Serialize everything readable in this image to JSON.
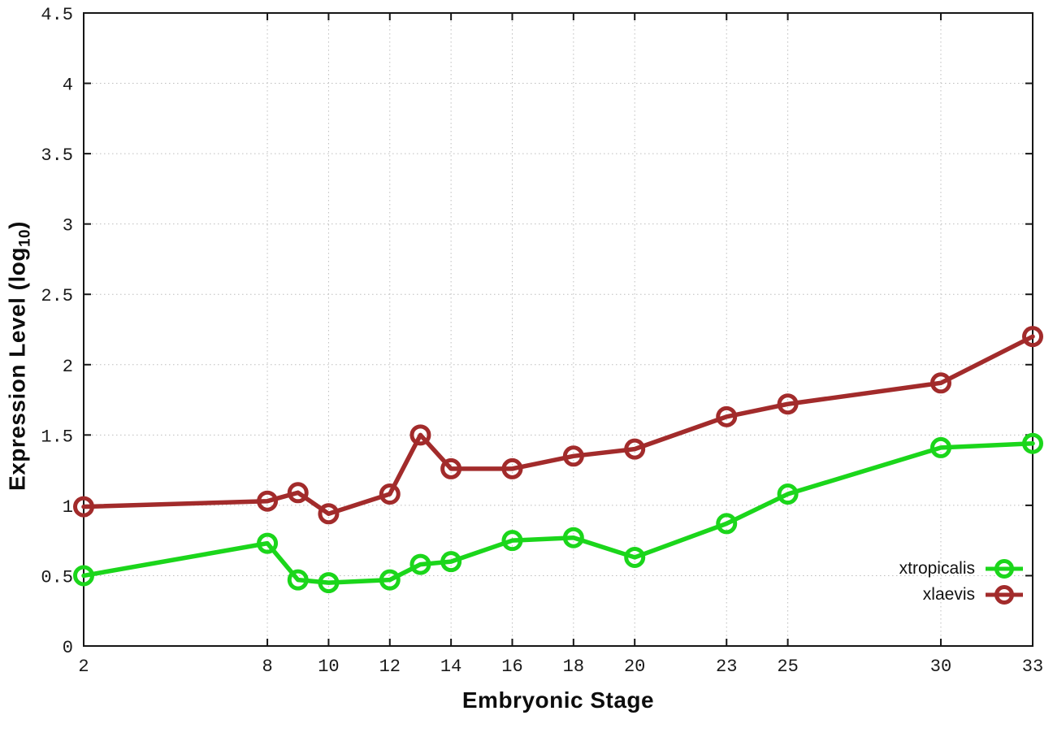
{
  "chart": {
    "xlabel": "Embryonic Stage",
    "ylabel_prefix": "Expression Level (log",
    "ylabel_sub": "10",
    "ylabel_suffix": ")"
  },
  "legend": {
    "items": [
      {
        "label": "xtropicalis",
        "color": "#1bd61b"
      },
      {
        "label": "xlaevis",
        "color": "#a22b2b"
      }
    ]
  },
  "chart_data": {
    "type": "line",
    "title": "",
    "xlabel": "Embryonic Stage",
    "ylabel": "Expression Level (log10)",
    "x": [
      2,
      8,
      9,
      10,
      12,
      13,
      14,
      16,
      18,
      20,
      23,
      25,
      30,
      33
    ],
    "series": [
      {
        "name": "xtropicalis",
        "color": "#1bd61b",
        "values": [
          0.5,
          0.73,
          0.47,
          0.45,
          0.47,
          0.58,
          0.6,
          0.75,
          0.77,
          0.63,
          0.87,
          1.08,
          1.41,
          1.44
        ]
      },
      {
        "name": "xlaevis",
        "color": "#a22b2b",
        "values": [
          0.99,
          1.03,
          1.09,
          0.94,
          1.08,
          1.5,
          1.26,
          1.26,
          1.35,
          1.4,
          1.63,
          1.72,
          1.87,
          2.2
        ]
      }
    ],
    "xlim": [
      2,
      33
    ],
    "ylim": [
      0,
      4.5
    ],
    "xticks": [
      2,
      8,
      10,
      12,
      14,
      16,
      18,
      20,
      23,
      25,
      30,
      33
    ],
    "yticks": [
      0,
      0.5,
      1,
      1.5,
      2,
      2.5,
      3,
      3.5,
      4,
      4.5
    ],
    "grid": true,
    "grid_style": "dotted",
    "legend_position": "bottom-right-inside",
    "marker": "open-circle",
    "axis_color": "#161616",
    "grid_color": "#bdbdbd"
  }
}
